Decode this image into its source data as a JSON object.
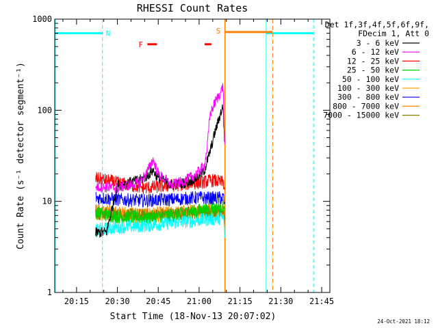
{
  "chart_data": {
    "type": "line",
    "title": "RHESSI Count Rates",
    "xlabel": "Start Time (18-Nov-13 20:07:02)",
    "ylabel": "Count Rate (s⁻¹ detector segment⁻¹)",
    "yscale": "log",
    "ylim": [
      1,
      1000
    ],
    "xlim": [
      "20:07",
      "21:48"
    ],
    "x_ticks": [
      "20:15",
      "20:30",
      "20:45",
      "21:00",
      "21:15",
      "21:30",
      "21:45"
    ],
    "y_ticks": [
      "1",
      "10",
      "100",
      "1000"
    ],
    "legend_header": [
      "Det 1f,3f,4f,5f,6f,9f,",
      "FDecim 1, Att 0"
    ],
    "legend_position": "right",
    "data_start": "20:22",
    "data_end": "21:10",
    "series": [
      {
        "name": "3 - 6 keV",
        "color": "#000000",
        "points": [
          [
            "20:22",
            4.5
          ],
          [
            "20:26",
            4.6
          ],
          [
            "20:30",
            15
          ],
          [
            "20:38",
            17
          ],
          [
            "20:41",
            19
          ],
          [
            "20:43",
            22
          ],
          [
            "20:45",
            18
          ],
          [
            "20:50",
            15
          ],
          [
            "20:55",
            16
          ],
          [
            "20:59",
            18
          ],
          [
            "21:02",
            22
          ],
          [
            "21:04",
            35
          ],
          [
            "21:06",
            60
          ],
          [
            "21:07",
            75
          ],
          [
            "21:08",
            95
          ],
          [
            "21:08.8",
            110
          ],
          [
            "21:09.5",
            35
          ]
        ]
      },
      {
        "name": "6 - 12 keV",
        "color": "#ff00ff",
        "points": [
          [
            "20:22",
            14.5
          ],
          [
            "20:30",
            14
          ],
          [
            "20:38",
            16
          ],
          [
            "20:41",
            21
          ],
          [
            "20:43",
            29
          ],
          [
            "20:45",
            20
          ],
          [
            "20:50",
            15
          ],
          [
            "20:55",
            17
          ],
          [
            "20:59",
            20
          ],
          [
            "21:02",
            25
          ],
          [
            "21:03",
            40
          ],
          [
            "21:04",
            90
          ],
          [
            "21:06",
            125
          ],
          [
            "21:07",
            140
          ],
          [
            "21:08",
            160
          ],
          [
            "21:08.8",
            185
          ],
          [
            "21:09.5",
            30
          ]
        ]
      },
      {
        "name": "12 - 25 keV",
        "color": "#ff0000",
        "points": [
          [
            "20:22",
            18
          ],
          [
            "20:30",
            16
          ],
          [
            "20:40",
            14
          ],
          [
            "20:50",
            15
          ],
          [
            "21:00",
            16
          ],
          [
            "21:05",
            17
          ],
          [
            "21:09",
            16
          ],
          [
            "21:09.5",
            12
          ]
        ]
      },
      {
        "name": "25 - 50 keV",
        "color": "#00d000",
        "points": [
          [
            "20:22",
            7.5
          ],
          [
            "20:30",
            6.8
          ],
          [
            "20:40",
            6.6
          ],
          [
            "20:50",
            7
          ],
          [
            "21:00",
            8
          ],
          [
            "21:05",
            8.3
          ],
          [
            "21:09",
            9
          ],
          [
            "21:09.5",
            7
          ]
        ]
      },
      {
        "name": "50 - 100 keV",
        "color": "#00ffff",
        "points": [
          [
            "20:22",
            4.8
          ],
          [
            "20:30",
            5.2
          ],
          [
            "20:40",
            5.4
          ],
          [
            "20:50",
            5.8
          ],
          [
            "21:00",
            6.2
          ],
          [
            "21:05",
            6.4
          ],
          [
            "21:09",
            6.6
          ],
          [
            "21:09.5",
            4
          ]
        ]
      },
      {
        "name": "100 - 300 keV",
        "color": "#ffa500",
        "points": [
          [
            "20:22",
            7
          ],
          [
            "20:30",
            6.8
          ],
          [
            "20:40",
            6.7
          ],
          [
            "20:50",
            7
          ],
          [
            "21:00",
            7.5
          ],
          [
            "21:05",
            7.6
          ],
          [
            "21:09",
            7.8
          ],
          [
            "21:09.5",
            5
          ]
        ]
      },
      {
        "name": "300 - 800 keV",
        "color": "#0000ff",
        "points": [
          [
            "20:22",
            11
          ],
          [
            "20:30",
            10.5
          ],
          [
            "20:40",
            10.2
          ],
          [
            "20:50",
            10.5
          ],
          [
            "21:00",
            11
          ],
          [
            "21:05",
            10.8
          ],
          [
            "21:09",
            11
          ],
          [
            "21:09.5",
            8
          ]
        ]
      },
      {
        "name": "800 - 7000 keV",
        "color": "#ff8c00",
        "points": [
          [
            "20:22",
            8
          ],
          [
            "20:30",
            7.5
          ],
          [
            "20:40",
            7.3
          ],
          [
            "20:50",
            7.5
          ],
          [
            "21:00",
            8
          ],
          [
            "21:05",
            8
          ],
          [
            "21:09",
            8.2
          ],
          [
            "21:09.5",
            6
          ]
        ]
      },
      {
        "name": "7000 - 15000 keV",
        "color": "#808000",
        "points": [
          [
            "20:22",
            7.5
          ],
          [
            "20:30",
            7.2
          ],
          [
            "20:40",
            7
          ],
          [
            "20:50",
            7.2
          ],
          [
            "21:00",
            7.6
          ],
          [
            "21:05",
            7.7
          ],
          [
            "21:09",
            7.9
          ],
          [
            "21:09.5",
            5.5
          ]
        ]
      }
    ],
    "annotations": {
      "night": {
        "label": "N",
        "color": "#00ffff",
        "level": 700,
        "spans": [
          [
            "20:07",
            "20:24.5"
          ],
          [
            "21:24.5",
            "21:42"
          ]
        ],
        "dashed_at": [
          "20:24.5",
          "21:42"
        ],
        "solid_at": [
          "20:07",
          "21:24.5"
        ]
      },
      "saa": {
        "label": "S",
        "color": "#ff8000",
        "level": 800,
        "span": [
          "21:09.5",
          "21:27"
        ],
        "solid_at": [
          "21:09.5"
        ],
        "dashed_at": [
          "21:27"
        ]
      },
      "flare": {
        "label": "F",
        "color": "#ff0000",
        "level": 530,
        "spans": [
          [
            "20:41",
            "20:44.5"
          ],
          [
            "21:02",
            "21:04.5"
          ]
        ]
      }
    }
  },
  "footer": {
    "timestamp": "24-Oct-2021 18:12"
  }
}
